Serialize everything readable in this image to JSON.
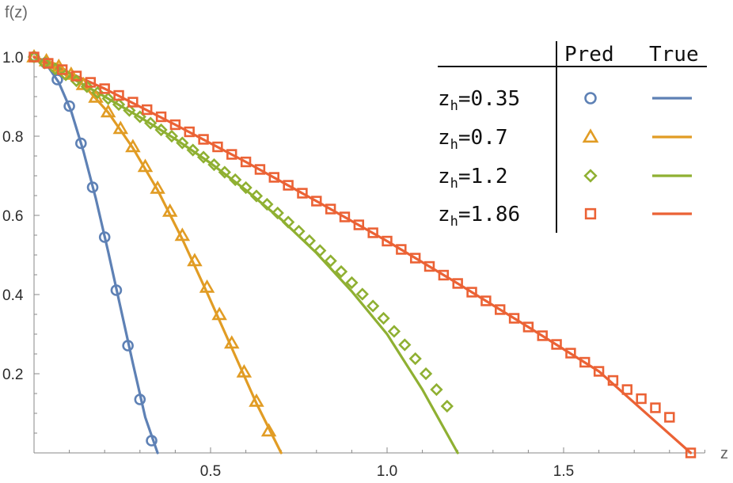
{
  "chart_data": {
    "type": "line",
    "xlabel": "z",
    "ylabel": "f(z)",
    "xlim": [
      0,
      1.9
    ],
    "ylim": [
      0,
      1.0
    ],
    "x_ticks": [
      0.5,
      1.0,
      1.5
    ],
    "x_tick_labels": [
      "0.5",
      "1.0",
      "1.5"
    ],
    "y_ticks": [
      0.2,
      0.4,
      0.6,
      0.8,
      1.0
    ],
    "y_tick_labels": [
      "0.2",
      "0.4",
      "0.6",
      "0.8",
      "1.0"
    ],
    "grid": false,
    "legend": {
      "placement": "top-right",
      "header_pred": "Pred",
      "header_true": "True"
    },
    "series": [
      {
        "name_base": "z",
        "name_sub": "h",
        "name_value": "=0.35",
        "zh": 0.35,
        "color": "#5E81B5",
        "marker": "circle",
        "true_x": [
          0,
          0.035,
          0.07,
          0.105,
          0.14,
          0.175,
          0.21,
          0.245,
          0.28,
          0.315,
          0.35
        ],
        "true_y": [
          1.0,
          0.982,
          0.936,
          0.864,
          0.762,
          0.643,
          0.508,
          0.367,
          0.226,
          0.09,
          0.0
        ],
        "pred_x": [
          0,
          0.033,
          0.066,
          0.1,
          0.133,
          0.166,
          0.2,
          0.233,
          0.266,
          0.3,
          0.333
        ],
        "pred_y": [
          1.0,
          0.985,
          0.943,
          0.876,
          0.782,
          0.671,
          0.545,
          0.411,
          0.271,
          0.135,
          0.031
        ]
      },
      {
        "name_base": "z",
        "name_sub": "h",
        "name_value": "=0.7",
        "zh": 0.7,
        "color": "#E19C24",
        "marker": "triangle",
        "true_x": [
          0,
          0.07,
          0.14,
          0.21,
          0.28,
          0.35,
          0.42,
          0.49,
          0.56,
          0.63,
          0.7
        ],
        "true_y": [
          1.0,
          0.98,
          0.93,
          0.86,
          0.77,
          0.664,
          0.54,
          0.405,
          0.265,
          0.125,
          0.0
        ],
        "pred_x": [
          0,
          0.035,
          0.07,
          0.105,
          0.14,
          0.175,
          0.21,
          0.245,
          0.28,
          0.315,
          0.35,
          0.385,
          0.42,
          0.455,
          0.49,
          0.525,
          0.56,
          0.595,
          0.63,
          0.665
        ],
        "pred_y": [
          1.0,
          0.99,
          0.976,
          0.956,
          0.93,
          0.898,
          0.861,
          0.819,
          0.773,
          0.723,
          0.668,
          0.61,
          0.549,
          0.485,
          0.418,
          0.349,
          0.277,
          0.204,
          0.13,
          0.055
        ]
      },
      {
        "name_base": "z",
        "name_sub": "h",
        "name_value": "=1.2",
        "zh": 1.2,
        "color": "#8FB032",
        "marker": "diamond",
        "true_x": [
          0,
          0.1,
          0.2,
          0.3,
          0.4,
          0.5,
          0.6,
          0.7,
          0.8,
          0.9,
          1.0,
          1.1,
          1.2
        ],
        "true_y": [
          1.0,
          0.95,
          0.9,
          0.848,
          0.793,
          0.732,
          0.664,
          0.59,
          0.505,
          0.408,
          0.3,
          0.16,
          0.0
        ],
        "pred_x": [
          0,
          0.03,
          0.06,
          0.09,
          0.12,
          0.15,
          0.18,
          0.21,
          0.24,
          0.27,
          0.3,
          0.33,
          0.36,
          0.39,
          0.42,
          0.45,
          0.48,
          0.51,
          0.54,
          0.57,
          0.6,
          0.63,
          0.66,
          0.69,
          0.72,
          0.75,
          0.78,
          0.81,
          0.84,
          0.87,
          0.9,
          0.93,
          0.96,
          0.99,
          1.02,
          1.05,
          1.08,
          1.11,
          1.14,
          1.17
        ],
        "pred_y": [
          1.0,
          0.985,
          0.97,
          0.955,
          0.94,
          0.925,
          0.91,
          0.895,
          0.88,
          0.865,
          0.849,
          0.833,
          0.816,
          0.8,
          0.783,
          0.765,
          0.747,
          0.728,
          0.709,
          0.69,
          0.67,
          0.649,
          0.628,
          0.606,
          0.583,
          0.56,
          0.536,
          0.511,
          0.485,
          0.458,
          0.43,
          0.401,
          0.371,
          0.34,
          0.307,
          0.273,
          0.238,
          0.2,
          0.16,
          0.118
        ]
      },
      {
        "name_base": "z",
        "name_sub": "h",
        "name_value": "=1.86",
        "zh": 1.86,
        "color": "#EB6235",
        "marker": "square",
        "true_x": [
          0,
          0.2,
          0.4,
          0.6,
          0.8,
          1.0,
          1.2,
          1.4,
          1.6,
          1.86
        ],
        "true_y": [
          1.0,
          0.92,
          0.829,
          0.735,
          0.636,
          0.535,
          0.428,
          0.318,
          0.206,
          0.0
        ],
        "pred_x": [
          0,
          0.04,
          0.08,
          0.12,
          0.16,
          0.2,
          0.24,
          0.28,
          0.32,
          0.36,
          0.4,
          0.44,
          0.48,
          0.52,
          0.56,
          0.6,
          0.64,
          0.68,
          0.72,
          0.76,
          0.8,
          0.84,
          0.88,
          0.92,
          0.96,
          1.0,
          1.04,
          1.08,
          1.12,
          1.16,
          1.2,
          1.24,
          1.28,
          1.32,
          1.36,
          1.4,
          1.44,
          1.48,
          1.52,
          1.56,
          1.6,
          1.64,
          1.68,
          1.72,
          1.76,
          1.8,
          1.86
        ],
        "pred_y": [
          1.0,
          0.984,
          0.968,
          0.952,
          0.936,
          0.92,
          0.903,
          0.886,
          0.867,
          0.849,
          0.829,
          0.811,
          0.792,
          0.773,
          0.754,
          0.735,
          0.716,
          0.696,
          0.676,
          0.656,
          0.636,
          0.616,
          0.596,
          0.576,
          0.556,
          0.535,
          0.514,
          0.492,
          0.471,
          0.449,
          0.428,
          0.406,
          0.384,
          0.362,
          0.34,
          0.318,
          0.296,
          0.274,
          0.252,
          0.229,
          0.206,
          0.183,
          0.16,
          0.137,
          0.114,
          0.09,
          0.0
        ]
      }
    ]
  }
}
